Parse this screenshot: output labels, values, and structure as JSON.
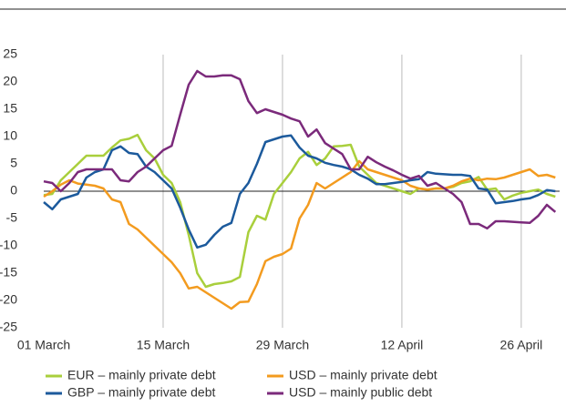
{
  "chart_data": {
    "type": "line",
    "x": [
      0,
      1,
      2,
      3,
      4,
      5,
      6,
      7,
      8,
      9,
      10,
      11,
      12,
      13,
      14,
      15,
      16,
      17,
      18,
      19,
      20,
      21,
      22,
      23,
      24,
      25,
      26,
      27,
      28,
      29,
      30,
      31,
      32,
      33,
      34,
      35,
      36,
      37,
      38,
      39,
      40,
      41,
      42,
      43,
      44,
      45,
      46,
      47,
      48,
      49,
      50,
      51,
      52,
      53,
      54,
      55,
      56,
      57,
      58,
      59,
      60
    ],
    "xlim": [
      0,
      60.5
    ],
    "xticks": [
      {
        "value": 0,
        "label": "01 March"
      },
      {
        "value": 14,
        "label": "15 March"
      },
      {
        "value": 28,
        "label": "29 March"
      },
      {
        "value": 42,
        "label": "12 April"
      },
      {
        "value": 56,
        "label": "26 April"
      }
    ],
    "ylim": [
      -25,
      25
    ],
    "yticks": [
      -25,
      -20,
      -15,
      -10,
      -5,
      0,
      5,
      10,
      15,
      20,
      25
    ],
    "grid": true,
    "legend": "bottom",
    "series": [
      {
        "name": "EUR – mainly private debt",
        "color": "#a9cf3c",
        "values": [
          -0.7,
          -0.5,
          2,
          3.5,
          5,
          6.5,
          6.5,
          6.5,
          8,
          9.3,
          9.6,
          10.3,
          7.5,
          6,
          3,
          1.5,
          -2,
          -8,
          -15,
          -17.5,
          -17,
          -16.8,
          -16.5,
          -15.7,
          -7.5,
          -4.5,
          -5.2,
          -0.5,
          1.5,
          3.5,
          6,
          7.2,
          4.8,
          6,
          8.2,
          8.3,
          8.5,
          4.5,
          3,
          1.5,
          1,
          0.5,
          0,
          -0.5,
          0.5,
          0.3,
          0.5,
          0.5,
          0.8,
          1.5,
          1.8,
          2.6,
          0.3,
          0.5,
          -1.5,
          -0.8,
          -0.3,
          0,
          0.3,
          -0.5,
          -1.0
        ]
      },
      {
        "name": "USD – mainly private debt",
        "color": "#f39b1f",
        "values": [
          -1,
          0,
          1.2,
          2,
          1.4,
          1.2,
          1,
          0.5,
          -1.5,
          -2,
          -6,
          -7,
          -8.5,
          -10,
          -11.5,
          -13,
          -15,
          -17.8,
          -17.5,
          -18.5,
          -19.5,
          -20.5,
          -21.5,
          -20.3,
          -20.2,
          -17,
          -12.8,
          -12,
          -11.5,
          -10.5,
          -5,
          -2.5,
          1.5,
          0.5,
          1.5,
          2.5,
          3.5,
          5.5,
          4,
          3.5,
          3,
          2.5,
          2,
          1,
          0.5,
          0.3,
          0.5,
          0.5,
          1,
          1.8,
          2.3,
          2,
          2.3,
          2.2,
          2.5,
          3,
          3.5,
          4,
          2.8,
          3,
          2.5
        ]
      },
      {
        "name": "GBP – mainly private debt",
        "color": "#1c5a9c",
        "values": [
          -2,
          -3.3,
          -1.5,
          -1,
          -0.5,
          2.5,
          3.5,
          4,
          7.5,
          8.2,
          7,
          6.8,
          4.5,
          3.5,
          2,
          0.5,
          -3,
          -7,
          -10.3,
          -9.8,
          -8,
          -6.5,
          -5.8,
          -0.5,
          1.5,
          5,
          9,
          9.5,
          10,
          10.2,
          8,
          6.5,
          6,
          5.2,
          4.8,
          4.5,
          4,
          3,
          2.3,
          1.3,
          1.3,
          1.5,
          1.7,
          2,
          2.2,
          3.5,
          3.2,
          3.1,
          3,
          3,
          2.8,
          0.5,
          0.3,
          -2.2,
          -2,
          -1.8,
          -1.5,
          -1.3,
          -0.7,
          0.2,
          0
        ]
      },
      {
        "name": "USD – mainly public debt",
        "color": "#7b2a7b",
        "values": [
          1.8,
          1.5,
          0,
          1.5,
          3.5,
          4,
          4,
          4,
          4,
          2,
          1.8,
          3.5,
          4.5,
          6,
          7.5,
          8.3,
          14,
          19.5,
          22,
          21,
          21,
          21.2,
          21.2,
          20.5,
          16.5,
          14.3,
          15,
          14.5,
          14,
          13.3,
          12.8,
          10,
          11.3,
          8.8,
          7.8,
          6.8,
          4,
          4,
          6.3,
          5.3,
          4.5,
          3.8,
          3,
          2.3,
          2.8,
          1,
          1.5,
          0.5,
          -0.5,
          -2,
          -6,
          -6,
          -6.8,
          -5.5,
          -5.5,
          -5.6,
          -5.7,
          -5.8,
          -4.5,
          -2.5,
          -3.8
        ]
      }
    ]
  }
}
